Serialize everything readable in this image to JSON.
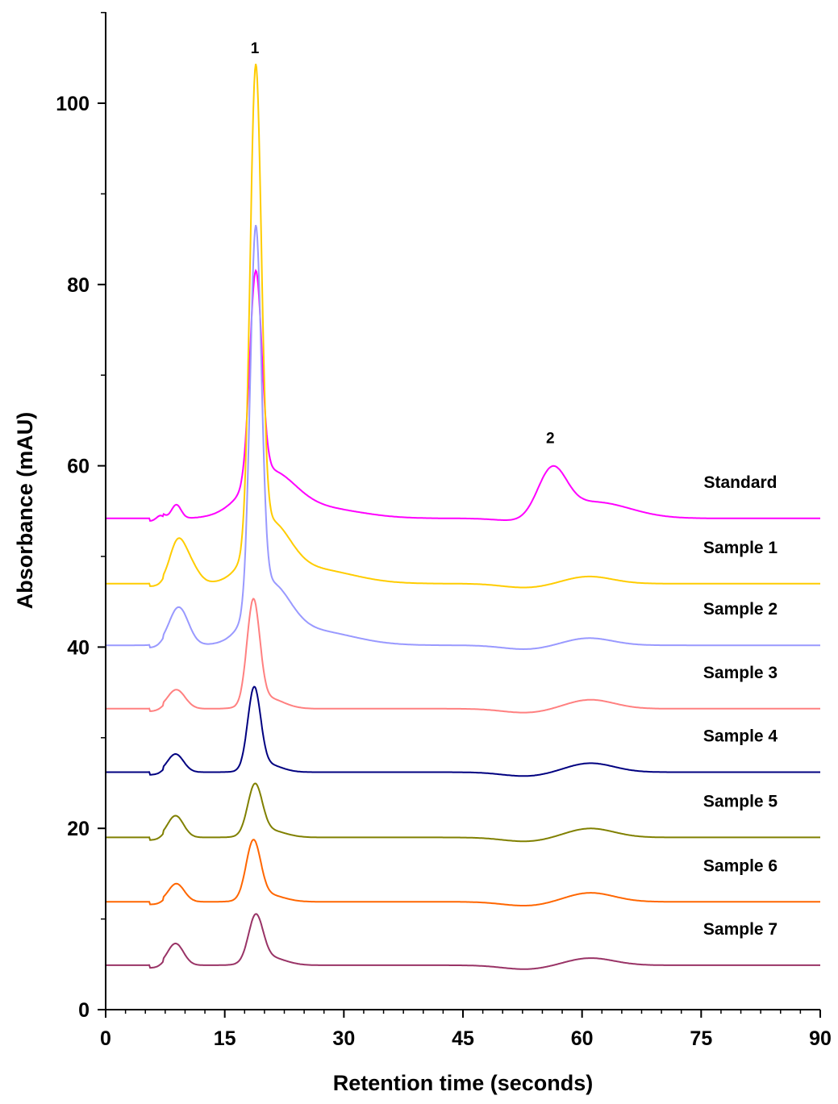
{
  "chart_data": {
    "type": "line",
    "title": "",
    "xlabel": "Retention time (seconds)",
    "ylabel": "Absorbance (mAU)",
    "xlim": [
      0,
      90
    ],
    "ylim": [
      0,
      110
    ],
    "xticks": [
      "0",
      "15",
      "30",
      "45",
      "60",
      "75",
      "90"
    ],
    "yticks": [
      "0",
      "20",
      "40",
      "60",
      "80",
      "100"
    ],
    "grid": false,
    "legend": "labels placed beside each trace on the right",
    "peak_labels": [
      {
        "label": "1",
        "x": 18.8,
        "y": 105.5
      },
      {
        "label": "2",
        "x": 56.0,
        "y": 62.5
      }
    ],
    "series": [
      {
        "name": "Standard",
        "color": "#ff00ff",
        "baseline": 54.2,
        "peaks": [
          [
            6.9,
            0.6,
            0.5
          ],
          [
            8.9,
            1.5,
            0.6
          ],
          [
            18.9,
            22.8,
            0.75
          ],
          [
            20.5,
            4.8,
            3.2
          ],
          [
            27,
            1.1,
            5
          ],
          [
            56.2,
            5.1,
            1.8
          ],
          [
            61.5,
            1.8,
            4.5
          ]
        ]
      },
      {
        "name": "Sample 1",
        "color": "#ffcc00",
        "baseline": 47.0,
        "peaks": [
          [
            9.0,
            4.2,
            1.0
          ],
          [
            10.6,
            2.0,
            1.1
          ],
          [
            18.9,
            52,
            0.7
          ],
          [
            20.6,
            6,
            2.5
          ],
          [
            26,
            1.6,
            5
          ],
          [
            60.8,
            0.8,
            3
          ]
        ]
      },
      {
        "name": "Sample 2",
        "color": "#9999ff",
        "baseline": 40.2,
        "peaks": [
          [
            9.2,
            4.2,
            1.2
          ],
          [
            18.9,
            41,
            0.7
          ],
          [
            20.6,
            6,
            2.5
          ],
          [
            26,
            1.6,
            5
          ],
          [
            60.8,
            0.8,
            3
          ]
        ]
      },
      {
        "name": "Sample 3",
        "color": "#ff8080",
        "baseline": 33.2,
        "peaks": [
          [
            8.9,
            2.1,
            1.1
          ],
          [
            18.6,
            11.3,
            0.8
          ],
          [
            20.3,
            1.2,
            2
          ],
          [
            61,
            1.0,
            3
          ]
        ]
      },
      {
        "name": "Sample 4",
        "color": "#000080",
        "baseline": 26.2,
        "peaks": [
          [
            8.8,
            2.0,
            1.0
          ],
          [
            18.7,
            8.8,
            0.8
          ],
          [
            20.2,
            0.9,
            1.8
          ],
          [
            61,
            1.0,
            3
          ]
        ]
      },
      {
        "name": "Sample 5",
        "color": "#808000",
        "baseline": 19.0,
        "peaks": [
          [
            8.8,
            2.4,
            1.0
          ],
          [
            18.8,
            5.4,
            0.9
          ],
          [
            20.5,
            0.8,
            2
          ],
          [
            61,
            1.0,
            3
          ]
        ]
      },
      {
        "name": "Sample 6",
        "color": "#ff6600",
        "baseline": 11.9,
        "peaks": [
          [
            8.9,
            2.0,
            1.0
          ],
          [
            18.6,
            6.3,
            0.9
          ],
          [
            20.3,
            0.8,
            2
          ],
          [
            61,
            1.0,
            3
          ]
        ]
      },
      {
        "name": "Sample 7",
        "color": "#993366",
        "baseline": 4.9,
        "peaks": [
          [
            8.8,
            2.4,
            1.0
          ],
          [
            18.9,
            5.0,
            0.9
          ],
          [
            20.5,
            0.9,
            2
          ],
          [
            61,
            0.8,
            3
          ]
        ]
      }
    ]
  }
}
